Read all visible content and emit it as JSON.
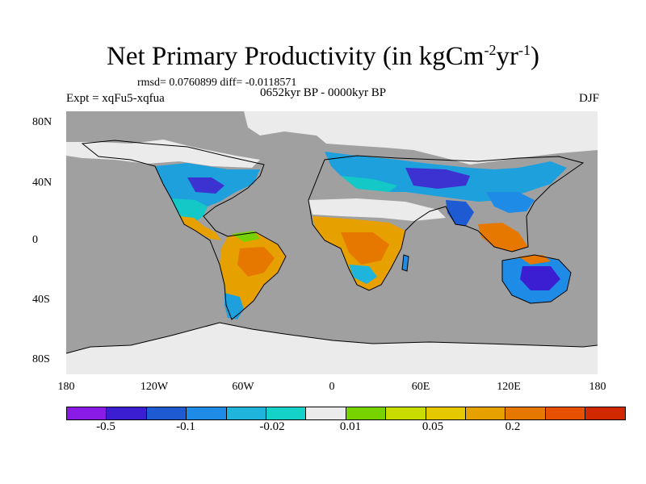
{
  "title": {
    "main": "Net Primary Productivity (in kgCm",
    "sup1": "-2",
    "mid": "yr",
    "sup2": "-1",
    "close": ")"
  },
  "stats": "rmsd= 0.0760899 diff= -0.0118571",
  "expt": "Expt = xqFu5-xqfua",
  "period": "0652kyr BP - 0000kyr BP",
  "season": "DJF",
  "lat_labels": [
    "80N",
    "40N",
    "0",
    "40S",
    "80S"
  ],
  "lon_labels": [
    "180",
    "120W",
    "60W",
    "0",
    "60E",
    "120E",
    "180"
  ],
  "colorbar": {
    "colors": [
      "#8a1be6",
      "#3c1ed2",
      "#1e5ad2",
      "#1e8ce6",
      "#1eb4dc",
      "#14d2c8",
      "#ebebeb",
      "#78d200",
      "#c8dc00",
      "#e6c800",
      "#e6a000",
      "#e67800",
      "#e65000",
      "#d22800"
    ],
    "labels": [
      "-0.5",
      "-0.1",
      "-0.02",
      "0.01",
      "0.05",
      "0.2"
    ]
  },
  "map_colors": {
    "ocean": "#a0a0a0",
    "no_change": "#ebebeb"
  }
}
